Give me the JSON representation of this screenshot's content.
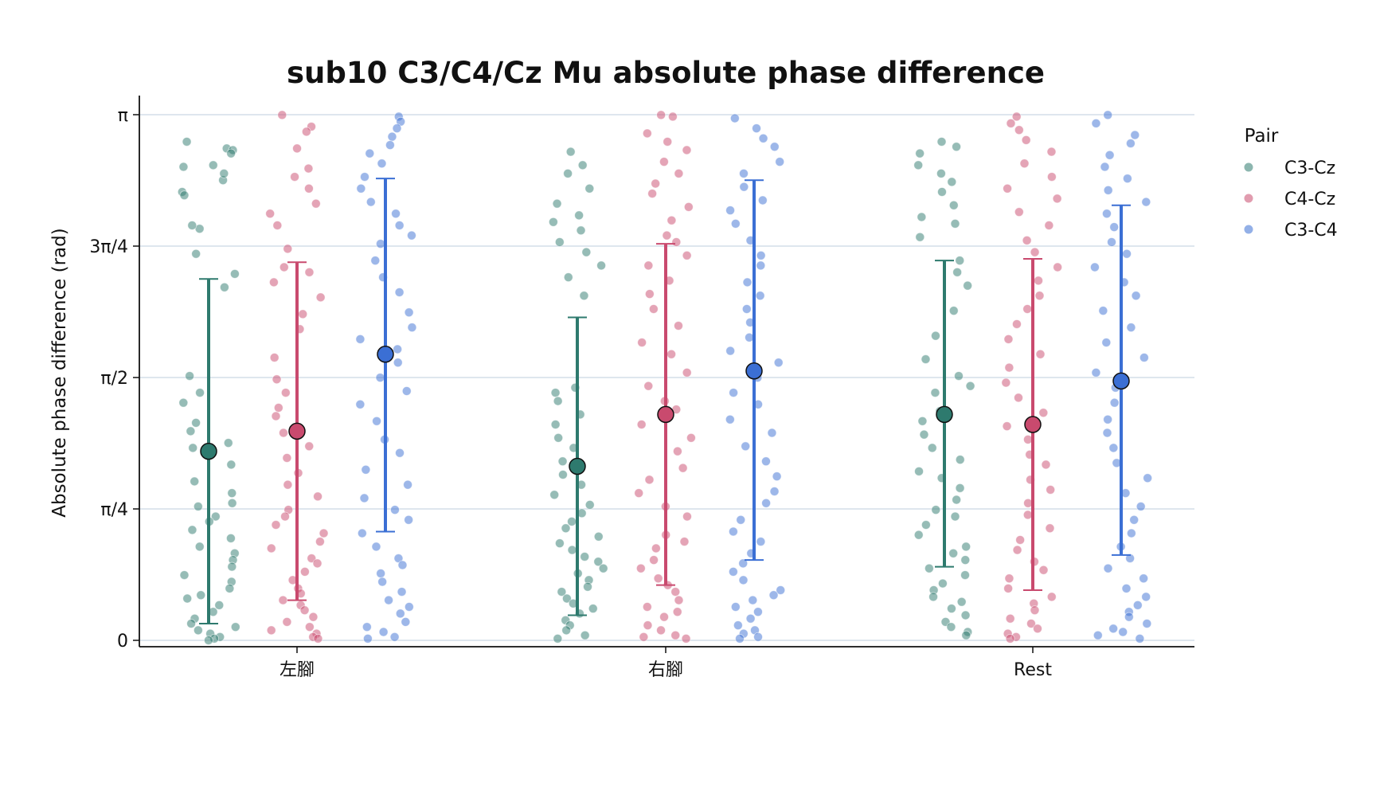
{
  "chart_data": {
    "type": "scatter",
    "title": "sub10 C3/C4/Cz Mu absolute phase difference",
    "xlabel": "",
    "ylabel": "Absolute phase difference (rad)",
    "categories": [
      "左腳",
      "右腳",
      "Rest"
    ],
    "yticks": [
      {
        "value": 0,
        "label": "0"
      },
      {
        "value": 0.7854,
        "label": "π/4"
      },
      {
        "value": 1.5708,
        "label": "π/2"
      },
      {
        "value": 2.3562,
        "label": "3π/4"
      },
      {
        "value": 3.1416,
        "label": "π"
      }
    ],
    "ylim": [
      0,
      3.1416
    ],
    "grid": "horizontal",
    "legend_title": "Pair",
    "legend_position": "right",
    "series": [
      {
        "name": "C3-Cz",
        "color": "#2e7a6e",
        "summary": [
          {
            "category": "左腳",
            "mean": 1.13,
            "err_low": 0.1,
            "err_high": 2.16
          },
          {
            "category": "右腳",
            "mean": 1.04,
            "err_low": 0.15,
            "err_high": 1.93
          },
          {
            "category": "Rest",
            "mean": 1.35,
            "err_low": 0.44,
            "err_high": 2.27
          }
        ],
        "points": [
          [
            2.98,
            2.94,
            2.93,
            2.83,
            2.68,
            2.66,
            2.75,
            2.84,
            2.91,
            2.79,
            2.46,
            2.48,
            2.31,
            2.11,
            2.19,
            1.58,
            1.48,
            1.42,
            1.3,
            1.25,
            1.18,
            1.15,
            1.05,
            0.95,
            0.88,
            0.82,
            0.8,
            0.74,
            0.71,
            0.66,
            0.61,
            0.56,
            0.52,
            0.48,
            0.44,
            0.39,
            0.35,
            0.31,
            0.27,
            0.25,
            0.21,
            0.17,
            0.13,
            0.1,
            0.08,
            0.06,
            0.04,
            0.02,
            0.01,
            0.0
          ],
          [
            2.92,
            2.84,
            2.79,
            2.7,
            2.61,
            2.54,
            2.5,
            2.45,
            2.38,
            2.32,
            2.24,
            2.17,
            2.06,
            1.51,
            1.48,
            1.43,
            1.35,
            1.29,
            1.21,
            1.15,
            1.07,
            0.99,
            0.93,
            0.87,
            0.81,
            0.76,
            0.71,
            0.67,
            0.62,
            0.58,
            0.54,
            0.5,
            0.47,
            0.43,
            0.4,
            0.36,
            0.32,
            0.29,
            0.25,
            0.22,
            0.19,
            0.16,
            0.12,
            0.09,
            0.06,
            0.03,
            0.01
          ],
          [
            2.98,
            2.95,
            2.91,
            2.84,
            2.79,
            2.74,
            2.68,
            2.6,
            2.53,
            2.49,
            2.41,
            2.27,
            2.2,
            2.12,
            1.97,
            1.82,
            1.68,
            1.58,
            1.52,
            1.48,
            1.37,
            1.31,
            1.23,
            1.15,
            1.08,
            1.01,
            0.97,
            0.91,
            0.84,
            0.78,
            0.74,
            0.69,
            0.63,
            0.56,
            0.52,
            0.48,
            0.43,
            0.39,
            0.34,
            0.3,
            0.26,
            0.23,
            0.19,
            0.15,
            0.11,
            0.08,
            0.05,
            0.03
          ]
        ]
      },
      {
        "name": "C4-Cz",
        "color": "#c94a6e",
        "summary": [
          {
            "category": "左腳",
            "mean": 1.25,
            "err_low": 0.24,
            "err_high": 2.26
          },
          {
            "category": "右腳",
            "mean": 1.35,
            "err_low": 0.33,
            "err_high": 2.37
          },
          {
            "category": "Rest",
            "mean": 1.29,
            "err_low": 0.3,
            "err_high": 2.28
          }
        ],
        "points": [
          [
            3.14,
            3.07,
            3.04,
            2.94,
            2.82,
            2.77,
            2.7,
            2.61,
            2.55,
            2.48,
            2.34,
            2.23,
            2.2,
            2.14,
            2.05,
            1.95,
            1.86,
            1.69,
            1.56,
            1.48,
            1.39,
            1.34,
            1.24,
            1.16,
            1.09,
            1.0,
            0.93,
            0.86,
            0.78,
            0.74,
            0.69,
            0.64,
            0.59,
            0.55,
            0.49,
            0.46,
            0.41,
            0.36,
            0.31,
            0.28,
            0.24,
            0.21,
            0.18,
            0.14,
            0.11,
            0.08,
            0.06,
            0.04,
            0.02,
            0.01
          ],
          [
            3.14,
            3.13,
            3.03,
            2.98,
            2.93,
            2.86,
            2.79,
            2.73,
            2.67,
            2.59,
            2.51,
            2.42,
            2.38,
            2.3,
            2.24,
            2.15,
            2.07,
            1.98,
            1.88,
            1.78,
            1.71,
            1.6,
            1.52,
            1.43,
            1.38,
            1.29,
            1.21,
            1.13,
            1.03,
            0.96,
            0.88,
            0.8,
            0.74,
            0.63,
            0.59,
            0.55,
            0.48,
            0.43,
            0.37,
            0.33,
            0.29,
            0.24,
            0.2,
            0.17,
            0.14,
            0.09,
            0.06,
            0.03,
            0.02,
            0.01
          ],
          [
            3.13,
            3.09,
            3.05,
            2.99,
            2.92,
            2.85,
            2.77,
            2.7,
            2.64,
            2.56,
            2.48,
            2.39,
            2.32,
            2.23,
            2.15,
            2.06,
            1.98,
            1.89,
            1.8,
            1.71,
            1.63,
            1.54,
            1.45,
            1.36,
            1.28,
            1.2,
            1.11,
            1.05,
            0.96,
            0.9,
            0.82,
            0.75,
            0.67,
            0.6,
            0.54,
            0.47,
            0.42,
            0.37,
            0.31,
            0.26,
            0.22,
            0.18,
            0.13,
            0.1,
            0.07,
            0.04,
            0.02,
            0.01
          ]
        ]
      },
      {
        "name": "C3-C4",
        "color": "#3b6fd4",
        "summary": [
          {
            "category": "左腳",
            "mean": 1.71,
            "err_low": 0.65,
            "err_high": 2.76
          },
          {
            "category": "右腳",
            "mean": 1.61,
            "err_low": 0.48,
            "err_high": 2.75
          },
          {
            "category": "Rest",
            "mean": 1.55,
            "err_low": 0.51,
            "err_high": 2.6
          }
        ],
        "points": [
          [
            3.13,
            3.1,
            3.06,
            3.01,
            2.96,
            2.91,
            2.85,
            2.77,
            2.7,
            2.62,
            2.55,
            2.48,
            2.42,
            2.37,
            2.27,
            2.17,
            2.08,
            1.96,
            1.87,
            1.8,
            1.74,
            1.66,
            1.57,
            1.49,
            1.41,
            1.31,
            1.2,
            1.12,
            1.02,
            0.93,
            0.85,
            0.78,
            0.72,
            0.64,
            0.56,
            0.49,
            0.45,
            0.4,
            0.35,
            0.29,
            0.24,
            0.2,
            0.16,
            0.11,
            0.08,
            0.05,
            0.02,
            0.01
          ],
          [
            3.12,
            3.06,
            3.0,
            2.95,
            2.86,
            2.79,
            2.71,
            2.63,
            2.57,
            2.49,
            2.39,
            2.3,
            2.24,
            2.14,
            2.06,
            1.98,
            1.9,
            1.81,
            1.73,
            1.66,
            1.57,
            1.48,
            1.41,
            1.32,
            1.24,
            1.16,
            1.07,
            0.98,
            0.89,
            0.82,
            0.72,
            0.65,
            0.59,
            0.52,
            0.46,
            0.41,
            0.36,
            0.3,
            0.27,
            0.24,
            0.2,
            0.17,
            0.13,
            0.09,
            0.06,
            0.04,
            0.02,
            0.01
          ],
          [
            3.14,
            3.09,
            3.02,
            2.97,
            2.9,
            2.83,
            2.76,
            2.69,
            2.62,
            2.55,
            2.47,
            2.38,
            2.31,
            2.23,
            2.14,
            2.06,
            1.97,
            1.87,
            1.78,
            1.69,
            1.6,
            1.51,
            1.42,
            1.32,
            1.24,
            1.15,
            1.06,
            0.97,
            0.88,
            0.8,
            0.72,
            0.64,
            0.56,
            0.49,
            0.43,
            0.37,
            0.31,
            0.26,
            0.21,
            0.17,
            0.14,
            0.1,
            0.07,
            0.05,
            0.03,
            0.01
          ]
        ]
      }
    ]
  }
}
